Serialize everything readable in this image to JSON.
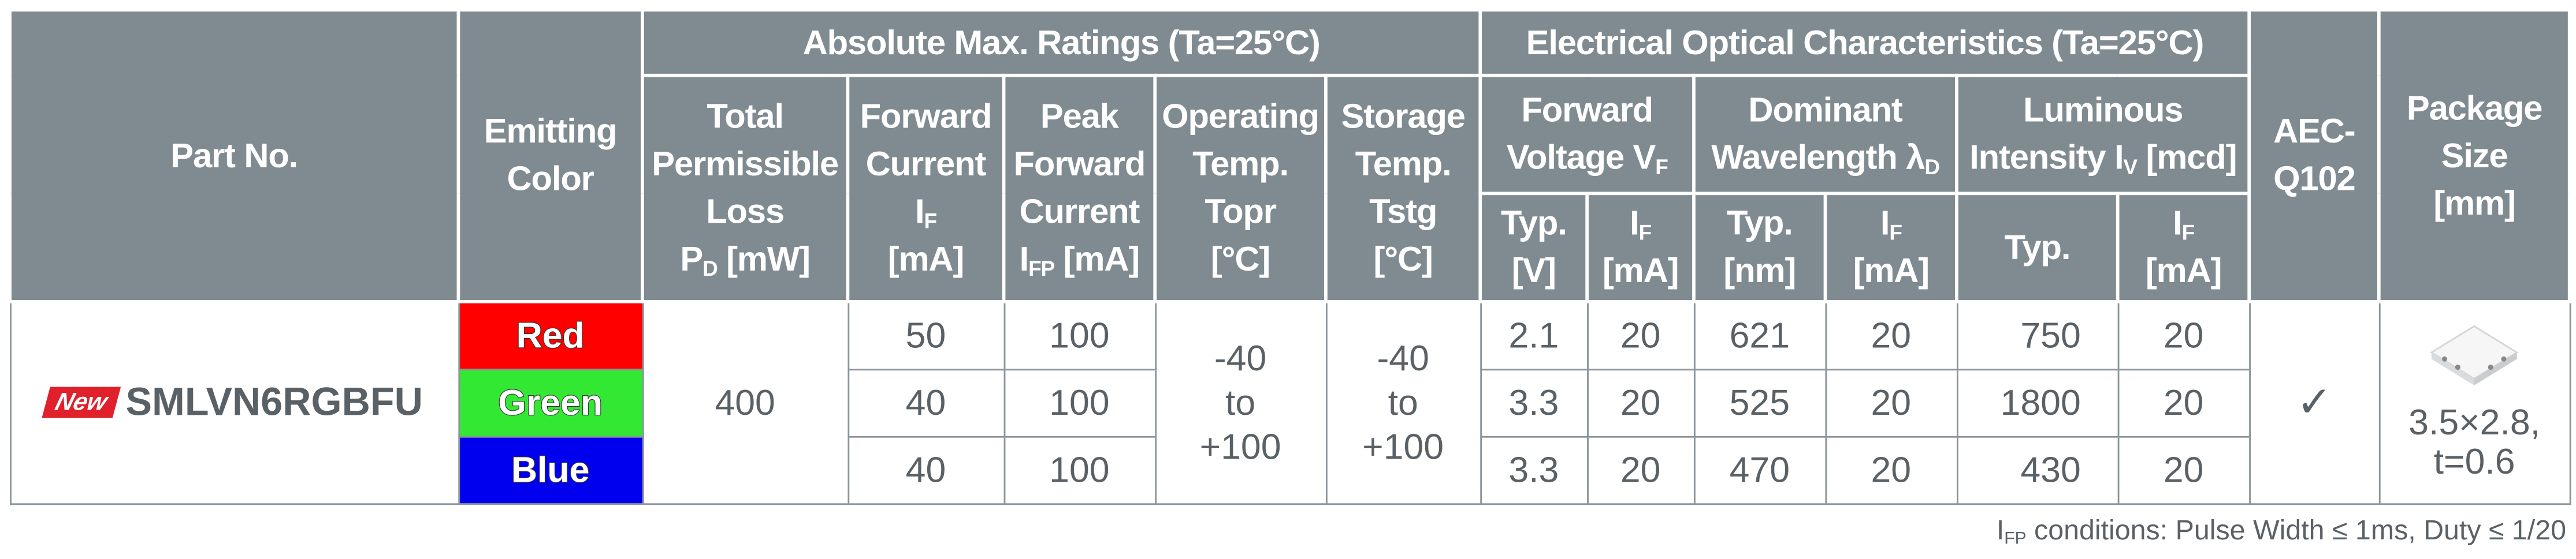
{
  "table": {
    "group_headers": [
      "Absolute Max. Ratings (Ta=25°C)",
      "Electrical Optical Characteristics (Ta=25°C)"
    ],
    "headers": {
      "part_no": [
        "Part No."
      ],
      "emitting_color": [
        "Emitting",
        "Color"
      ],
      "total_loss": [
        "Total",
        "Permissible",
        "Loss",
        {
          "main": "P",
          "sub": "D",
          "rest": " [mW]"
        }
      ],
      "forward_current": [
        "Forward",
        "Current",
        {
          "main": "I",
          "sub": "F"
        },
        "[mA]"
      ],
      "peak_forward_current": [
        "Peak",
        "Forward",
        "Current",
        {
          "main": "I",
          "sub": "FP",
          "rest": " [mA]"
        }
      ],
      "operating_temp": [
        "Operating",
        "Temp.",
        "Topr",
        "[°C]"
      ],
      "storage_temp": [
        "Storage",
        "Temp.",
        "Tstg",
        "[°C]"
      ],
      "forward_voltage": [
        "Forward",
        {
          "main": "Voltage V",
          "sub": "F"
        }
      ],
      "dominant_wavelength": [
        "Dominant",
        {
          "main": "Wavelength λ",
          "sub": "D"
        }
      ],
      "luminous_intensity": [
        "Luminous",
        {
          "main": "Intensity I",
          "sub": "V",
          "rest": " [mcd]"
        }
      ],
      "vf_typ": [
        "Typ.",
        "[V]"
      ],
      "vf_if": [
        {
          "main": "I",
          "sub": "F"
        },
        "[mA]"
      ],
      "wl_typ": [
        "Typ.",
        "[nm]"
      ],
      "wl_if": [
        {
          "main": "I",
          "sub": "F"
        },
        "[mA]"
      ],
      "iv_typ": [
        "Typ."
      ],
      "iv_if": [
        {
          "main": "I",
          "sub": "F"
        },
        "[mA]"
      ],
      "aec": [
        "AEC-",
        "Q102"
      ],
      "package": [
        "Package",
        "Size",
        "[mm]"
      ]
    },
    "product": {
      "badge": "New",
      "part_no": "SMLVN6RGBFU",
      "total_loss": 400,
      "operating_temp": [
        "-40",
        "to",
        "+100"
      ],
      "storage_temp": [
        "-40",
        "to",
        "+100"
      ],
      "aec": "✓",
      "package": [
        "3.5×2.8,",
        "t=0.6"
      ]
    },
    "rows": [
      {
        "color": "Red",
        "fill": "#ff0000",
        "forward_current": 50,
        "peak_forward_current": 100,
        "vf_typ": 2.1,
        "vf_if": 20,
        "wl_typ": 621,
        "wl_if": 20,
        "iv_typ": 750,
        "iv_if": 20
      },
      {
        "color": "Green",
        "fill": "#33e833",
        "forward_current": 40,
        "peak_forward_current": 100,
        "vf_typ": 3.3,
        "vf_if": 20,
        "wl_typ": 525,
        "wl_if": 20,
        "iv_typ": 1800,
        "iv_if": 20
      },
      {
        "color": "Blue",
        "fill": "#0000ee",
        "forward_current": 40,
        "peak_forward_current": 100,
        "vf_typ": 3.3,
        "vf_if": 20,
        "wl_typ": 470,
        "wl_if": 20,
        "iv_typ": 430,
        "iv_if": 20
      }
    ],
    "footnote": {
      "main": "I",
      "sub": "FP",
      "rest": " conditions: Pulse Width ≤ 1ms, Duty ≤ 1/20"
    }
  }
}
